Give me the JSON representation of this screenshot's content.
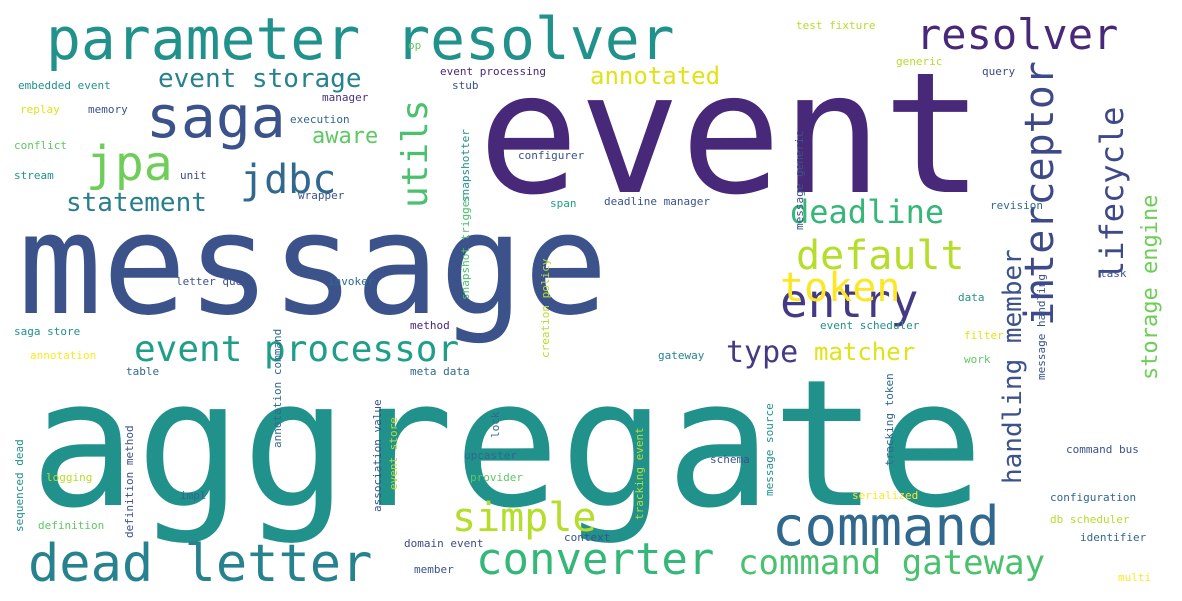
{
  "colors": {
    "background": "#ffffff",
    "palette": [
      "#440154",
      "#46327e",
      "#365c8d",
      "#277f8e",
      "#1fa187",
      "#4ac16d",
      "#a0da39",
      "#fde725"
    ]
  },
  "words": [
    {
      "text": "aggregate",
      "weight": 1.0,
      "color": "#21918c",
      "vertical": false
    },
    {
      "text": "message",
      "weight": 0.9,
      "color": "#3b528b",
      "vertical": false
    },
    {
      "text": "event",
      "weight": 0.88,
      "color": "#482878",
      "vertical": false
    },
    {
      "text": "parameter resolver",
      "weight": 0.45,
      "color": "#21918c",
      "vertical": false
    },
    {
      "text": "dead letter",
      "weight": 0.36,
      "color": "#26828e",
      "vertical": false
    },
    {
      "text": "command",
      "weight": 0.36,
      "color": "#31688e",
      "vertical": false
    },
    {
      "text": "saga",
      "weight": 0.34,
      "color": "#3b528b",
      "vertical": false
    },
    {
      "text": "resolver",
      "weight": 0.28,
      "color": "#482878",
      "vertical": false
    },
    {
      "text": "converter",
      "weight": 0.3,
      "color": "#35b779",
      "vertical": false
    },
    {
      "text": "entry",
      "weight": 0.3,
      "color": "#443983",
      "vertical": false
    },
    {
      "text": "jpa",
      "weight": 0.29,
      "color": "#6ece58",
      "vertical": false
    },
    {
      "text": "jdbc",
      "weight": 0.26,
      "color": "#31688e",
      "vertical": false
    },
    {
      "text": "default",
      "weight": 0.27,
      "color": "#b5de2b",
      "vertical": false
    },
    {
      "text": "simple",
      "weight": 0.26,
      "color": "#b5de2b",
      "vertical": false
    },
    {
      "text": "event processor",
      "weight": 0.24,
      "color": "#1f9e89",
      "vertical": false
    },
    {
      "text": "command gateway",
      "weight": 0.23,
      "color": "#4ac16d",
      "vertical": false
    },
    {
      "text": "interceptor",
      "weight": 0.27,
      "color": "#3e4989",
      "vertical": true
    },
    {
      "text": "utils",
      "weight": 0.23,
      "color": "#4ac16d",
      "vertical": true
    },
    {
      "text": "token",
      "weight": 0.22,
      "color": "#fde725",
      "vertical": false
    },
    {
      "text": "deadline",
      "weight": 0.2,
      "color": "#35b779",
      "vertical": false
    },
    {
      "text": "lifecycle",
      "weight": 0.21,
      "color": "#3e4989",
      "vertical": true
    },
    {
      "text": "type",
      "weight": 0.17,
      "color": "#443983",
      "vertical": false
    },
    {
      "text": "event storage",
      "weight": 0.16,
      "color": "#26828e",
      "vertical": false
    },
    {
      "text": "annotated",
      "weight": 0.16,
      "color": "#dfe318",
      "vertical": false
    },
    {
      "text": "statement",
      "weight": 0.16,
      "color": "#277f8e",
      "vertical": false
    },
    {
      "text": "matcher",
      "weight": 0.16,
      "color": "#dfe318",
      "vertical": false
    },
    {
      "text": "aware",
      "weight": 0.14,
      "color": "#5ec962",
      "vertical": false
    },
    {
      "text": "handling member",
      "weight": 0.17,
      "color": "#3b528b",
      "vertical": true
    },
    {
      "text": "storage engine",
      "weight": 0.15,
      "color": "#6ece58",
      "vertical": true
    },
    {
      "text": "test fixture",
      "weight": 0.08,
      "color": "#b5de2b",
      "vertical": false
    },
    {
      "text": "embedded event",
      "weight": 0.07,
      "color": "#21918c",
      "vertical": false
    },
    {
      "text": "op",
      "weight": 0.07,
      "color": "#5ec962",
      "vertical": false
    },
    {
      "text": "event processing",
      "weight": 0.07,
      "color": "#482878",
      "vertical": false
    },
    {
      "text": "generic",
      "weight": 0.07,
      "color": "#b5de2b",
      "vertical": false
    },
    {
      "text": "query",
      "weight": 0.07,
      "color": "#3e4989",
      "vertical": false
    },
    {
      "text": "stub",
      "weight": 0.06,
      "color": "#3b528b",
      "vertical": false
    },
    {
      "text": "manager",
      "weight": 0.06,
      "color": "#46327e",
      "vertical": false
    },
    {
      "text": "replay",
      "weight": 0.07,
      "color": "#dfe318",
      "vertical": false
    },
    {
      "text": "memory",
      "weight": 0.07,
      "color": "#3b528b",
      "vertical": false
    },
    {
      "text": "execution",
      "weight": 0.07,
      "color": "#31688e",
      "vertical": false
    },
    {
      "text": "conflict",
      "weight": 0.07,
      "color": "#5ec962",
      "vertical": false
    },
    {
      "text": "configurer",
      "weight": 0.07,
      "color": "#3b528b",
      "vertical": false
    },
    {
      "text": "stream",
      "weight": 0.07,
      "color": "#21918c",
      "vertical": false
    },
    {
      "text": "unit",
      "weight": 0.06,
      "color": "#3e4989",
      "vertical": false
    },
    {
      "text": "wrapper",
      "weight": 0.06,
      "color": "#3b528b",
      "vertical": false
    },
    {
      "text": "span",
      "weight": 0.06,
      "color": "#1f9e89",
      "vertical": false
    },
    {
      "text": "deadline manager",
      "weight": 0.07,
      "color": "#3b528b",
      "vertical": false
    },
    {
      "text": "revision",
      "weight": 0.07,
      "color": "#31688e",
      "vertical": false
    },
    {
      "text": "letter queue",
      "weight": 0.07,
      "color": "#3b528b",
      "vertical": false
    },
    {
      "text": "invoker",
      "weight": 0.07,
      "color": "#31688e",
      "vertical": false
    },
    {
      "text": "task",
      "weight": 0.06,
      "color": "#3b528b",
      "vertical": false
    },
    {
      "text": "data",
      "weight": 0.06,
      "color": "#21918c",
      "vertical": false
    },
    {
      "text": "saga store",
      "weight": 0.07,
      "color": "#21918c",
      "vertical": false
    },
    {
      "text": "method",
      "weight": 0.06,
      "color": "#482878",
      "vertical": false
    },
    {
      "text": "event scheduler",
      "weight": 0.07,
      "color": "#21918c",
      "vertical": false
    },
    {
      "text": "filter",
      "weight": 0.07,
      "color": "#dfe318",
      "vertical": false
    },
    {
      "text": "annotation",
      "weight": 0.07,
      "color": "#fde725",
      "vertical": false
    },
    {
      "text": "gateway",
      "weight": 0.06,
      "color": "#26828e",
      "vertical": false
    },
    {
      "text": "work",
      "weight": 0.06,
      "color": "#5ec962",
      "vertical": false
    },
    {
      "text": "table",
      "weight": 0.06,
      "color": "#31688e",
      "vertical": false
    },
    {
      "text": "meta data",
      "weight": 0.06,
      "color": "#31688e",
      "vertical": false
    },
    {
      "text": "command bus",
      "weight": 0.07,
      "color": "#3b528b",
      "vertical": false
    },
    {
      "text": "upcaster",
      "weight": 0.07,
      "color": "#31688e",
      "vertical": false
    },
    {
      "text": "schema",
      "weight": 0.06,
      "color": "#3b528b",
      "vertical": false
    },
    {
      "text": "logging",
      "weight": 0.07,
      "color": "#b5de2b",
      "vertical": false
    },
    {
      "text": "provider",
      "weight": 0.07,
      "color": "#5ec962",
      "vertical": false
    },
    {
      "text": "impl",
      "weight": 0.07,
      "color": "#31688e",
      "vertical": false
    },
    {
      "text": "serialized",
      "weight": 0.07,
      "color": "#fde725",
      "vertical": false
    },
    {
      "text": "configuration",
      "weight": 0.07,
      "color": "#31688e",
      "vertical": false
    },
    {
      "text": "db scheduler",
      "weight": 0.07,
      "color": "#b5de2b",
      "vertical": false
    },
    {
      "text": "definition",
      "weight": 0.07,
      "color": "#5ec962",
      "vertical": false
    },
    {
      "text": "context",
      "weight": 0.06,
      "color": "#3b528b",
      "vertical": false
    },
    {
      "text": "identifier",
      "weight": 0.07,
      "color": "#31688e",
      "vertical": false
    },
    {
      "text": "domain event",
      "weight": 0.07,
      "color": "#3e4989",
      "vertical": false
    },
    {
      "text": "member",
      "weight": 0.06,
      "color": "#3b528b",
      "vertical": false
    },
    {
      "text": "multi",
      "weight": 0.06,
      "color": "#fde725",
      "vertical": false
    },
    {
      "text": "snapshotter",
      "weight": 0.06,
      "color": "#21918c",
      "vertical": true
    },
    {
      "text": "snapshot trigger",
      "weight": 0.06,
      "color": "#4ac16d",
      "vertical": true
    },
    {
      "text": "message generic",
      "weight": 0.06,
      "color": "#3b528b",
      "vertical": true
    },
    {
      "text": "creation policy",
      "weight": 0.06,
      "color": "#b5de2b",
      "vertical": true
    },
    {
      "text": "message handling",
      "weight": 0.06,
      "color": "#3b528b",
      "vertical": true
    },
    {
      "text": "tracking token",
      "weight": 0.06,
      "color": "#31688e",
      "vertical": true
    },
    {
      "text": "annotation command",
      "weight": 0.06,
      "color": "#31688e",
      "vertical": true
    },
    {
      "text": "association value",
      "weight": 0.06,
      "color": "#3b528b",
      "vertical": true
    },
    {
      "text": "lock",
      "weight": 0.06,
      "color": "#31688e",
      "vertical": true
    },
    {
      "text": "message source",
      "weight": 0.06,
      "color": "#21918c",
      "vertical": true
    },
    {
      "text": "sequenced dead",
      "weight": 0.06,
      "color": "#21918c",
      "vertical": true
    },
    {
      "text": "definition method",
      "weight": 0.06,
      "color": "#3b528b",
      "vertical": true
    },
    {
      "text": "event store",
      "weight": 0.06,
      "color": "#b5de2b",
      "vertical": true
    },
    {
      "text": "tracking event",
      "weight": 0.06,
      "color": "#b5de2b",
      "vertical": true
    }
  ]
}
